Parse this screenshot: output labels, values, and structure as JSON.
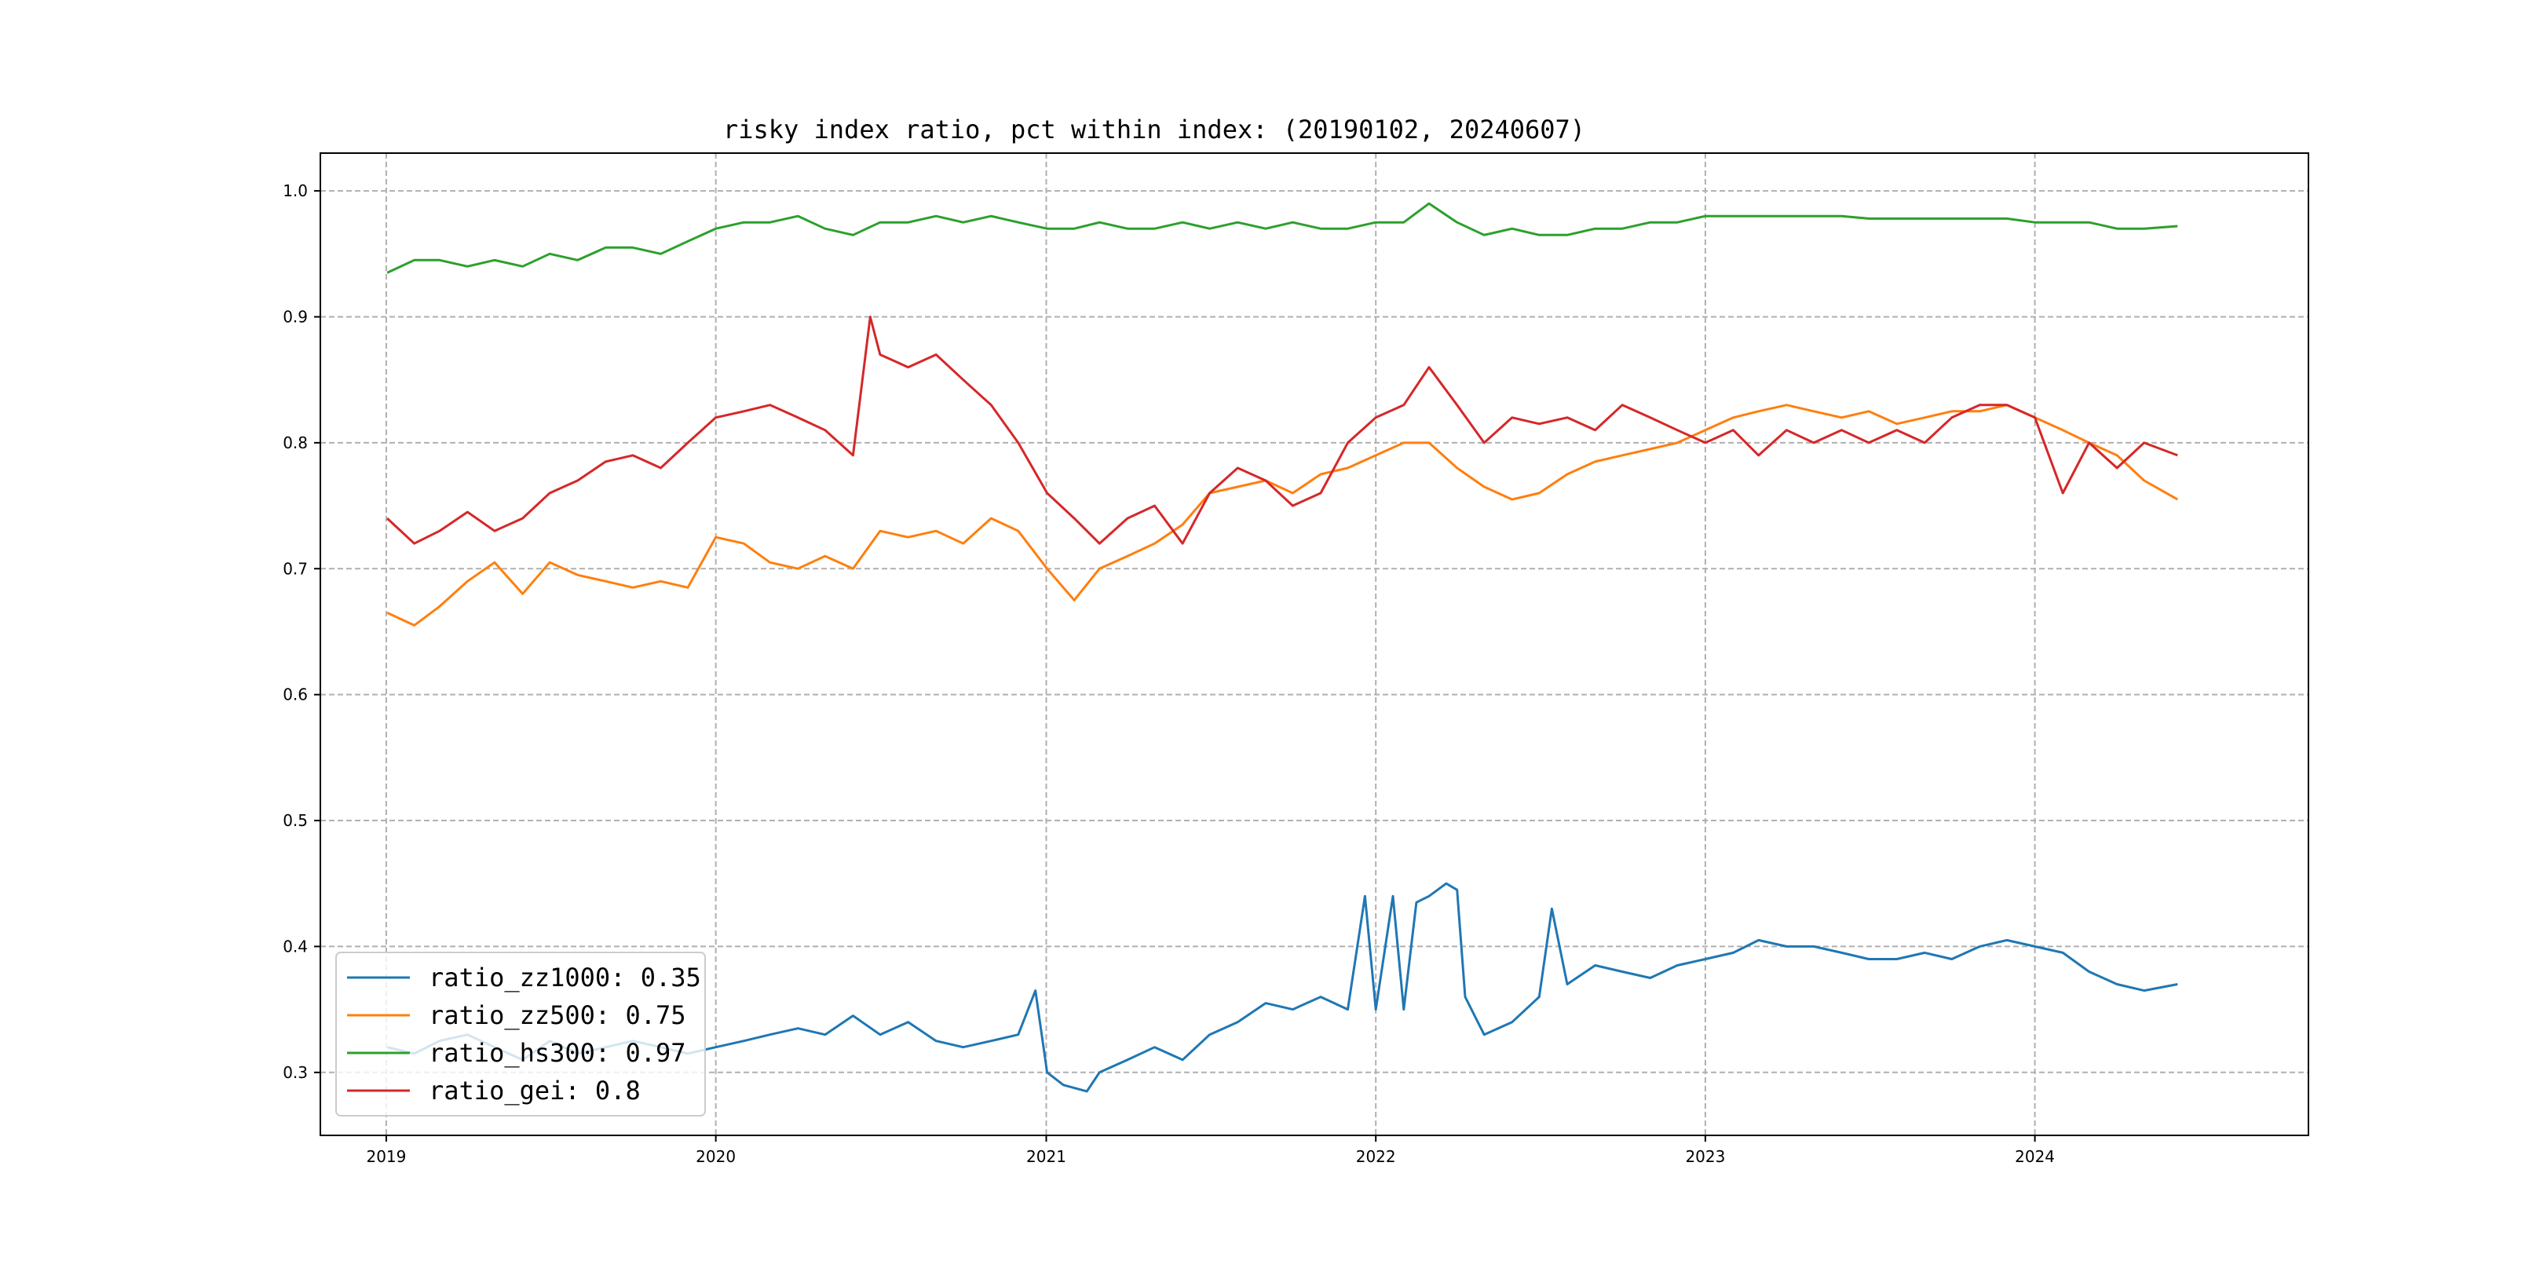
{
  "chart_data": {
    "type": "line",
    "title": "risky index ratio, pct within index: (20190102, 20240607)",
    "xlabel": "",
    "ylabel": "",
    "xlim": [
      "2018-10-20",
      "2024-10-30"
    ],
    "ylim": [
      0.25,
      1.03
    ],
    "grid": true,
    "legend_position": "lower-left",
    "x_ticks": [
      "2019",
      "2020",
      "2021",
      "2022",
      "2023",
      "2024"
    ],
    "y_ticks": [
      "0.3",
      "0.4",
      "0.5",
      "0.6",
      "0.7",
      "0.8",
      "0.9",
      "1.0"
    ],
    "series": [
      {
        "name": "ratio_zz1000",
        "legend_label": "ratio_zz1000: 0.35",
        "color": "#1f77b4",
        "points": [
          [
            "2019-01-02",
            0.32
          ],
          [
            "2019-02-01",
            0.315
          ],
          [
            "2019-03-01",
            0.325
          ],
          [
            "2019-04-01",
            0.33
          ],
          [
            "2019-05-01",
            0.32
          ],
          [
            "2019-06-01",
            0.31
          ],
          [
            "2019-07-01",
            0.325
          ],
          [
            "2019-08-01",
            0.315
          ],
          [
            "2019-09-01",
            0.32
          ],
          [
            "2019-10-01",
            0.325
          ],
          [
            "2019-11-01",
            0.32
          ],
          [
            "2019-12-01",
            0.315
          ],
          [
            "2020-01-01",
            0.32
          ],
          [
            "2020-02-01",
            0.325
          ],
          [
            "2020-03-01",
            0.33
          ],
          [
            "2020-04-01",
            0.335
          ],
          [
            "2020-05-01",
            0.33
          ],
          [
            "2020-06-01",
            0.345
          ],
          [
            "2020-07-01",
            0.33
          ],
          [
            "2020-08-01",
            0.34
          ],
          [
            "2020-09-01",
            0.325
          ],
          [
            "2020-10-01",
            0.32
          ],
          [
            "2020-11-01",
            0.325
          ],
          [
            "2020-12-01",
            0.33
          ],
          [
            "2020-12-20",
            0.365
          ],
          [
            "2021-01-02",
            0.3
          ],
          [
            "2021-01-20",
            0.29
          ],
          [
            "2021-02-15",
            0.285
          ],
          [
            "2021-03-01",
            0.3
          ],
          [
            "2021-04-01",
            0.31
          ],
          [
            "2021-05-01",
            0.32
          ],
          [
            "2021-06-01",
            0.31
          ],
          [
            "2021-07-01",
            0.33
          ],
          [
            "2021-08-01",
            0.34
          ],
          [
            "2021-09-01",
            0.355
          ],
          [
            "2021-10-01",
            0.35
          ],
          [
            "2021-11-01",
            0.36
          ],
          [
            "2021-12-01",
            0.35
          ],
          [
            "2021-12-20",
            0.44
          ],
          [
            "2022-01-01",
            0.35
          ],
          [
            "2022-01-20",
            0.44
          ],
          [
            "2022-02-01",
            0.35
          ],
          [
            "2022-02-15",
            0.435
          ],
          [
            "2022-03-01",
            0.44
          ],
          [
            "2022-03-20",
            0.45
          ],
          [
            "2022-04-01",
            0.445
          ],
          [
            "2022-04-10",
            0.36
          ],
          [
            "2022-05-01",
            0.33
          ],
          [
            "2022-06-01",
            0.34
          ],
          [
            "2022-07-01",
            0.36
          ],
          [
            "2022-07-15",
            0.43
          ],
          [
            "2022-08-01",
            0.37
          ],
          [
            "2022-09-01",
            0.385
          ],
          [
            "2022-10-01",
            0.38
          ],
          [
            "2022-11-01",
            0.375
          ],
          [
            "2022-12-01",
            0.385
          ],
          [
            "2023-01-01",
            0.39
          ],
          [
            "2023-02-01",
            0.395
          ],
          [
            "2023-03-01",
            0.405
          ],
          [
            "2023-04-01",
            0.4
          ],
          [
            "2023-05-01",
            0.4
          ],
          [
            "2023-06-01",
            0.395
          ],
          [
            "2023-07-01",
            0.39
          ],
          [
            "2023-08-01",
            0.39
          ],
          [
            "2023-09-01",
            0.395
          ],
          [
            "2023-10-01",
            0.39
          ],
          [
            "2023-11-01",
            0.4
          ],
          [
            "2023-12-01",
            0.405
          ],
          [
            "2024-01-01",
            0.4
          ],
          [
            "2024-02-01",
            0.395
          ],
          [
            "2024-03-01",
            0.38
          ],
          [
            "2024-04-01",
            0.37
          ],
          [
            "2024-05-01",
            0.365
          ],
          [
            "2024-06-07",
            0.37
          ]
        ]
      },
      {
        "name": "ratio_zz500",
        "legend_label": "ratio_zz500: 0.75",
        "color": "#ff7f0e",
        "points": [
          [
            "2019-01-02",
            0.665
          ],
          [
            "2019-02-01",
            0.655
          ],
          [
            "2019-03-01",
            0.67
          ],
          [
            "2019-04-01",
            0.69
          ],
          [
            "2019-05-01",
            0.705
          ],
          [
            "2019-06-01",
            0.68
          ],
          [
            "2019-07-01",
            0.705
          ],
          [
            "2019-08-01",
            0.695
          ],
          [
            "2019-09-01",
            0.69
          ],
          [
            "2019-10-01",
            0.685
          ],
          [
            "2019-11-01",
            0.69
          ],
          [
            "2019-12-01",
            0.685
          ],
          [
            "2020-01-01",
            0.725
          ],
          [
            "2020-02-01",
            0.72
          ],
          [
            "2020-03-01",
            0.705
          ],
          [
            "2020-04-01",
            0.7
          ],
          [
            "2020-05-01",
            0.71
          ],
          [
            "2020-06-01",
            0.7
          ],
          [
            "2020-07-01",
            0.73
          ],
          [
            "2020-08-01",
            0.725
          ],
          [
            "2020-09-01",
            0.73
          ],
          [
            "2020-10-01",
            0.72
          ],
          [
            "2020-11-01",
            0.74
          ],
          [
            "2020-12-01",
            0.73
          ],
          [
            "2021-01-02",
            0.7
          ],
          [
            "2021-02-01",
            0.675
          ],
          [
            "2021-03-01",
            0.7
          ],
          [
            "2021-04-01",
            0.71
          ],
          [
            "2021-05-01",
            0.72
          ],
          [
            "2021-06-01",
            0.735
          ],
          [
            "2021-07-01",
            0.76
          ],
          [
            "2021-08-01",
            0.765
          ],
          [
            "2021-09-01",
            0.77
          ],
          [
            "2021-10-01",
            0.76
          ],
          [
            "2021-11-01",
            0.775
          ],
          [
            "2021-12-01",
            0.78
          ],
          [
            "2022-01-01",
            0.79
          ],
          [
            "2022-02-01",
            0.8
          ],
          [
            "2022-03-01",
            0.8
          ],
          [
            "2022-04-01",
            0.78
          ],
          [
            "2022-05-01",
            0.765
          ],
          [
            "2022-06-01",
            0.755
          ],
          [
            "2022-07-01",
            0.76
          ],
          [
            "2022-08-01",
            0.775
          ],
          [
            "2022-09-01",
            0.785
          ],
          [
            "2022-10-01",
            0.79
          ],
          [
            "2022-11-01",
            0.795
          ],
          [
            "2022-12-01",
            0.8
          ],
          [
            "2023-01-01",
            0.81
          ],
          [
            "2023-02-01",
            0.82
          ],
          [
            "2023-03-01",
            0.825
          ],
          [
            "2023-04-01",
            0.83
          ],
          [
            "2023-05-01",
            0.825
          ],
          [
            "2023-06-01",
            0.82
          ],
          [
            "2023-07-01",
            0.825
          ],
          [
            "2023-08-01",
            0.815
          ],
          [
            "2023-09-01",
            0.82
          ],
          [
            "2023-10-01",
            0.825
          ],
          [
            "2023-11-01",
            0.825
          ],
          [
            "2023-12-01",
            0.83
          ],
          [
            "2024-01-01",
            0.82
          ],
          [
            "2024-02-01",
            0.81
          ],
          [
            "2024-03-01",
            0.8
          ],
          [
            "2024-04-01",
            0.79
          ],
          [
            "2024-05-01",
            0.77
          ],
          [
            "2024-06-07",
            0.755
          ]
        ]
      },
      {
        "name": "ratio_hs300",
        "legend_label": "ratio_hs300: 0.97",
        "color": "#2ca02c",
        "points": [
          [
            "2019-01-02",
            0.935
          ],
          [
            "2019-02-01",
            0.945
          ],
          [
            "2019-03-01",
            0.945
          ],
          [
            "2019-04-01",
            0.94
          ],
          [
            "2019-05-01",
            0.945
          ],
          [
            "2019-06-01",
            0.94
          ],
          [
            "2019-07-01",
            0.95
          ],
          [
            "2019-08-01",
            0.945
          ],
          [
            "2019-09-01",
            0.955
          ],
          [
            "2019-10-01",
            0.955
          ],
          [
            "2019-11-01",
            0.95
          ],
          [
            "2019-12-01",
            0.96
          ],
          [
            "2020-01-01",
            0.97
          ],
          [
            "2020-02-01",
            0.975
          ],
          [
            "2020-03-01",
            0.975
          ],
          [
            "2020-04-01",
            0.98
          ],
          [
            "2020-05-01",
            0.97
          ],
          [
            "2020-06-01",
            0.965
          ],
          [
            "2020-07-01",
            0.975
          ],
          [
            "2020-08-01",
            0.975
          ],
          [
            "2020-09-01",
            0.98
          ],
          [
            "2020-10-01",
            0.975
          ],
          [
            "2020-11-01",
            0.98
          ],
          [
            "2020-12-01",
            0.975
          ],
          [
            "2021-01-02",
            0.97
          ],
          [
            "2021-02-01",
            0.97
          ],
          [
            "2021-03-01",
            0.975
          ],
          [
            "2021-04-01",
            0.97
          ],
          [
            "2021-05-01",
            0.97
          ],
          [
            "2021-06-01",
            0.975
          ],
          [
            "2021-07-01",
            0.97
          ],
          [
            "2021-08-01",
            0.975
          ],
          [
            "2021-09-01",
            0.97
          ],
          [
            "2021-10-01",
            0.975
          ],
          [
            "2021-11-01",
            0.97
          ],
          [
            "2021-12-01",
            0.97
          ],
          [
            "2022-01-01",
            0.975
          ],
          [
            "2022-02-01",
            0.975
          ],
          [
            "2022-03-01",
            0.99
          ],
          [
            "2022-04-01",
            0.975
          ],
          [
            "2022-05-01",
            0.965
          ],
          [
            "2022-06-01",
            0.97
          ],
          [
            "2022-07-01",
            0.965
          ],
          [
            "2022-08-01",
            0.965
          ],
          [
            "2022-09-01",
            0.97
          ],
          [
            "2022-10-01",
            0.97
          ],
          [
            "2022-11-01",
            0.975
          ],
          [
            "2022-12-01",
            0.975
          ],
          [
            "2023-01-01",
            0.98
          ],
          [
            "2023-02-01",
            0.98
          ],
          [
            "2023-03-01",
            0.98
          ],
          [
            "2023-04-01",
            0.98
          ],
          [
            "2023-05-01",
            0.98
          ],
          [
            "2023-06-01",
            0.98
          ],
          [
            "2023-07-01",
            0.978
          ],
          [
            "2023-08-01",
            0.978
          ],
          [
            "2023-09-01",
            0.978
          ],
          [
            "2023-10-01",
            0.978
          ],
          [
            "2023-11-01",
            0.978
          ],
          [
            "2023-12-01",
            0.978
          ],
          [
            "2024-01-01",
            0.975
          ],
          [
            "2024-02-01",
            0.975
          ],
          [
            "2024-03-01",
            0.975
          ],
          [
            "2024-04-01",
            0.97
          ],
          [
            "2024-05-01",
            0.97
          ],
          [
            "2024-06-07",
            0.972
          ]
        ]
      },
      {
        "name": "ratio_gei",
        "legend_label": "ratio_gei: 0.8",
        "color": "#d62728",
        "points": [
          [
            "2019-01-02",
            0.74
          ],
          [
            "2019-02-01",
            0.72
          ],
          [
            "2019-03-01",
            0.73
          ],
          [
            "2019-04-01",
            0.745
          ],
          [
            "2019-05-01",
            0.73
          ],
          [
            "2019-06-01",
            0.74
          ],
          [
            "2019-07-01",
            0.76
          ],
          [
            "2019-08-01",
            0.77
          ],
          [
            "2019-09-01",
            0.785
          ],
          [
            "2019-10-01",
            0.79
          ],
          [
            "2019-11-01",
            0.78
          ],
          [
            "2019-12-01",
            0.8
          ],
          [
            "2020-01-01",
            0.82
          ],
          [
            "2020-02-01",
            0.825
          ],
          [
            "2020-03-01",
            0.83
          ],
          [
            "2020-04-01",
            0.82
          ],
          [
            "2020-05-01",
            0.81
          ],
          [
            "2020-06-01",
            0.79
          ],
          [
            "2020-06-20",
            0.9
          ],
          [
            "2020-07-01",
            0.87
          ],
          [
            "2020-08-01",
            0.86
          ],
          [
            "2020-09-01",
            0.87
          ],
          [
            "2020-10-01",
            0.85
          ],
          [
            "2020-11-01",
            0.83
          ],
          [
            "2020-12-01",
            0.8
          ],
          [
            "2021-01-02",
            0.76
          ],
          [
            "2021-02-01",
            0.74
          ],
          [
            "2021-03-01",
            0.72
          ],
          [
            "2021-04-01",
            0.74
          ],
          [
            "2021-05-01",
            0.75
          ],
          [
            "2021-06-01",
            0.72
          ],
          [
            "2021-07-01",
            0.76
          ],
          [
            "2021-08-01",
            0.78
          ],
          [
            "2021-09-01",
            0.77
          ],
          [
            "2021-10-01",
            0.75
          ],
          [
            "2021-11-01",
            0.76
          ],
          [
            "2021-12-01",
            0.8
          ],
          [
            "2022-01-01",
            0.82
          ],
          [
            "2022-02-01",
            0.83
          ],
          [
            "2022-03-01",
            0.86
          ],
          [
            "2022-04-01",
            0.83
          ],
          [
            "2022-05-01",
            0.8
          ],
          [
            "2022-06-01",
            0.82
          ],
          [
            "2022-07-01",
            0.815
          ],
          [
            "2022-08-01",
            0.82
          ],
          [
            "2022-09-01",
            0.81
          ],
          [
            "2022-10-01",
            0.83
          ],
          [
            "2022-11-01",
            0.82
          ],
          [
            "2022-12-01",
            0.81
          ],
          [
            "2023-01-01",
            0.8
          ],
          [
            "2023-02-01",
            0.81
          ],
          [
            "2023-03-01",
            0.79
          ],
          [
            "2023-04-01",
            0.81
          ],
          [
            "2023-05-01",
            0.8
          ],
          [
            "2023-06-01",
            0.81
          ],
          [
            "2023-07-01",
            0.8
          ],
          [
            "2023-08-01",
            0.81
          ],
          [
            "2023-09-01",
            0.8
          ],
          [
            "2023-10-01",
            0.82
          ],
          [
            "2023-11-01",
            0.83
          ],
          [
            "2023-12-01",
            0.83
          ],
          [
            "2024-01-01",
            0.82
          ],
          [
            "2024-02-01",
            0.76
          ],
          [
            "2024-03-01",
            0.8
          ],
          [
            "2024-04-01",
            0.78
          ],
          [
            "2024-05-01",
            0.8
          ],
          [
            "2024-06-07",
            0.79
          ]
        ]
      }
    ]
  }
}
